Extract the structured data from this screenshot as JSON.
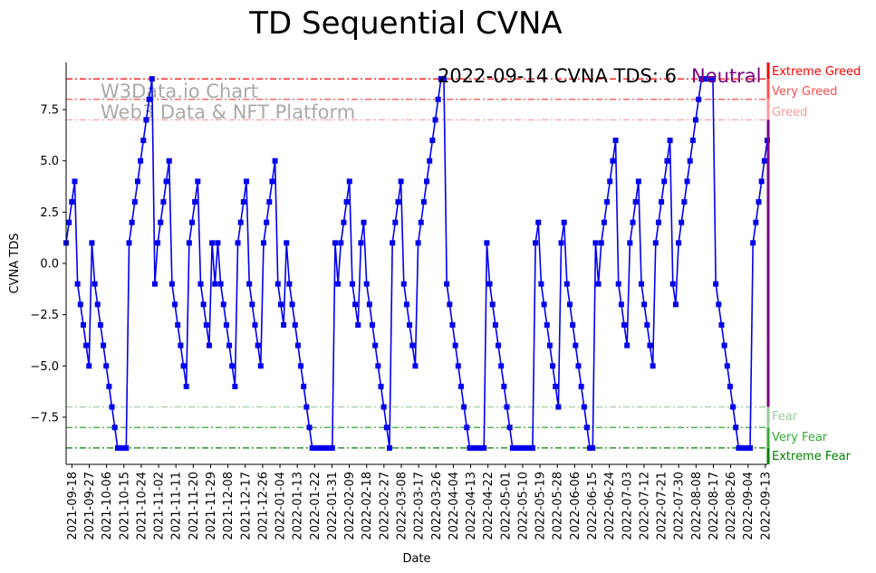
{
  "chart_data": {
    "type": "line",
    "title": "TD Sequential CVNA",
    "xlabel": "Date",
    "ylabel": "CVNA TDS",
    "ylim": [
      -9.8,
      9.8
    ],
    "yticks": [
      -7.5,
      -5.0,
      -2.5,
      0.0,
      2.5,
      5.0,
      7.5
    ],
    "ytick_labels": [
      "−7.5",
      "−5.0",
      "−2.5",
      "0.0",
      "2.5",
      "5.0",
      "7.5"
    ],
    "x_start": "2021-09-15",
    "x_end": "2022-09-14",
    "xtick_labels": [
      "2021-09-18",
      "2021-09-27",
      "2021-10-06",
      "2021-10-15",
      "2021-10-24",
      "2021-11-02",
      "2021-11-11",
      "2021-11-20",
      "2021-11-29",
      "2021-12-08",
      "2021-12-17",
      "2021-12-26",
      "2022-01-04",
      "2022-01-13",
      "2022-01-22",
      "2022-01-31",
      "2022-02-09",
      "2022-02-18",
      "2022-02-27",
      "2022-03-08",
      "2022-03-17",
      "2022-03-26",
      "2022-04-04",
      "2022-04-13",
      "2022-04-22",
      "2022-05-01",
      "2022-05-10",
      "2022-05-19",
      "2022-05-28",
      "2022-06-06",
      "2022-06-15",
      "2022-06-24",
      "2022-07-03",
      "2022-07-12",
      "2022-07-21",
      "2022-07-30",
      "2022-08-08",
      "2022-08-17",
      "2022-08-26",
      "2022-09-04",
      "2022-09-13"
    ],
    "grid": false,
    "series": [
      {
        "color": "#0000ee",
        "marker": "square",
        "values": [
          1,
          2,
          3,
          4,
          -1,
          -2,
          -3,
          -4,
          -5,
          1,
          -1,
          -2,
          -3,
          -4,
          -5,
          -6,
          -7,
          -8,
          -9,
          -9,
          -9,
          -9,
          1,
          2,
          3,
          4,
          5,
          6,
          7,
          8,
          9,
          -1,
          1,
          2,
          3,
          4,
          5,
          -1,
          -2,
          -3,
          -4,
          -5,
          -6,
          1,
          2,
          3,
          4,
          -1,
          -2,
          -3,
          -4,
          1,
          -1,
          1,
          -1,
          -2,
          -3,
          -4,
          -5,
          -6,
          1,
          2,
          3,
          4,
          -1,
          -2,
          -3,
          -4,
          -5,
          1,
          2,
          3,
          4,
          5,
          -1,
          -2,
          -3,
          1,
          -1,
          -2,
          -3,
          -4,
          -5,
          -6,
          -7,
          -8,
          -9,
          -9,
          -9,
          -9,
          -9,
          -9,
          -9,
          -9,
          1,
          -1,
          1,
          2,
          3,
          4,
          -1,
          -2,
          -3,
          1,
          2,
          -1,
          -2,
          -3,
          -4,
          -5,
          -6,
          -7,
          -8,
          -9,
          1,
          2,
          3,
          4,
          -1,
          -2,
          -3,
          -4,
          -5,
          1,
          2,
          3,
          4,
          5,
          6,
          7,
          8,
          9,
          9,
          -1,
          -2,
          -3,
          -4,
          -5,
          -6,
          -7,
          -8,
          -9,
          -9,
          -9,
          -9,
          -9,
          -9,
          1,
          -1,
          -2,
          -3,
          -4,
          -5,
          -6,
          -7,
          -8,
          -9,
          -9,
          -9,
          -9,
          -9,
          -9,
          -9,
          -9,
          1,
          2,
          -1,
          -2,
          -3,
          -4,
          -5,
          -6,
          -7,
          1,
          2,
          -1,
          -2,
          -3,
          -4,
          -5,
          -6,
          -7,
          -8,
          -9,
          -9,
          1,
          -1,
          1,
          2,
          3,
          4,
          5,
          6,
          -1,
          -2,
          -3,
          -4,
          1,
          2,
          3,
          4,
          -1,
          -2,
          -3,
          -4,
          -5,
          1,
          2,
          3,
          4,
          5,
          6,
          -1,
          -2,
          1,
          2,
          3,
          4,
          5,
          6,
          7,
          8,
          9,
          9,
          9,
          9,
          9,
          -1,
          -2,
          -3,
          -4,
          -5,
          -6,
          -7,
          -8,
          -9,
          -9,
          -9,
          -9,
          -9,
          1,
          2,
          3,
          4,
          5,
          6
        ]
      }
    ],
    "zones": [
      {
        "label": "Extreme Greed",
        "y": 9,
        "color": "#ff0000"
      },
      {
        "label": "Very Greed",
        "y": 8,
        "color": "#ff4d4d"
      },
      {
        "label": "Greed",
        "y": 7,
        "color": "#ff9999"
      },
      {
        "label": "Fear",
        "y": -7,
        "color": "#99cc99"
      },
      {
        "label": "Very Fear",
        "y": -8,
        "color": "#33aa33"
      },
      {
        "label": "Extreme Fear",
        "y": -9,
        "color": "#008000"
      }
    ],
    "watermark": [
      "W3Data.io Chart",
      "Web3 Data & NFT Platform"
    ],
    "current": {
      "text": "2022-09-14 CVNA TDS: 6",
      "status": "Neutral",
      "status_color": "#800080"
    }
  }
}
